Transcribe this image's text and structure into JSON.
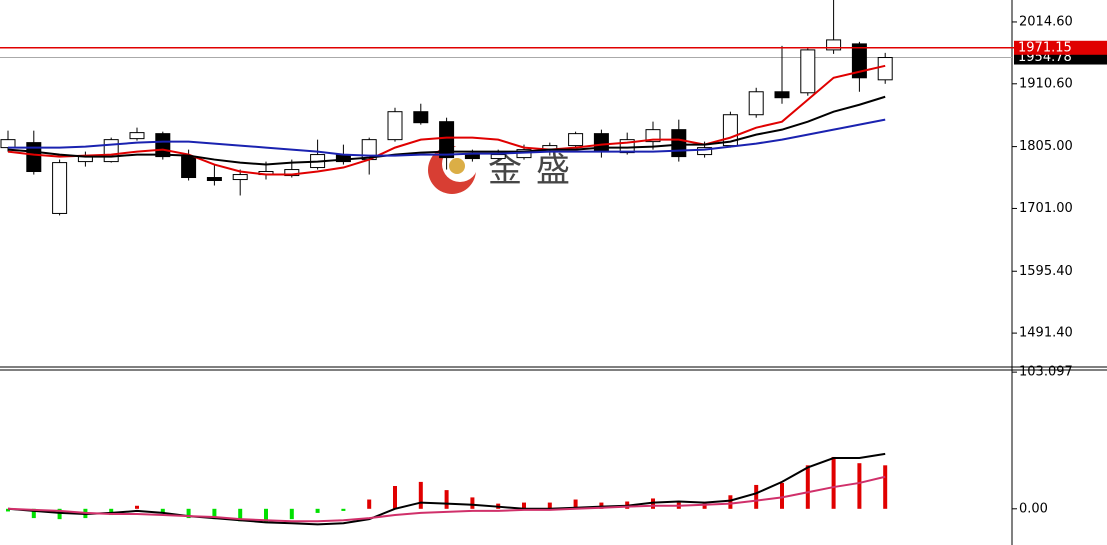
{
  "chart_data": [
    {
      "type": "candlestick",
      "watermark": "金盛",
      "ylim": [
        1434.4,
        2051.5
      ],
      "yticks": [
        {
          "value": 2014.6,
          "label": "2014.60"
        },
        {
          "value": 1910.6,
          "label": "1910.60"
        },
        {
          "value": 1805,
          "label": "1805.00"
        },
        {
          "value": 1701,
          "label": "1701.00"
        },
        {
          "value": 1595.4,
          "label": "1595.40"
        },
        {
          "value": 1491.4,
          "label": "1491.40"
        }
      ],
      "price_line": 1971.15,
      "price_line_color": "#e00000",
      "last_price": 1954.78,
      "open": [
        1803.3,
        1811.7,
        1692.6,
        1779.8,
        1779.8,
        1818.4,
        1826.8,
        1788.2,
        1753.0,
        1749.6,
        1758.0,
        1756.3,
        1769.8,
        1791.6,
        1783.2,
        1816.7,
        1863.7,
        1846.9,
        1791.6,
        1784.9,
        1786.5,
        1799.9,
        1806.7,
        1826.8,
        1794.9,
        1813.4,
        1833.5,
        1791.6,
        1806.7,
        1858.6,
        1897.2,
        1895.5,
        1967.6,
        1977.7,
        1917.3
      ],
      "high": [
        1831.8,
        1831.8,
        1783.2,
        1796.6,
        1820.1,
        1836.8,
        1830.1,
        1799.9,
        1774.8,
        1766.4,
        1779.8,
        1783.2,
        1816.7,
        1808.3,
        1820.1,
        1870.4,
        1877.1,
        1853.6,
        1799.9,
        1799.9,
        1808.3,
        1811.7,
        1830.1,
        1833.5,
        1828.5,
        1846.9,
        1850.3,
        1813.4,
        1863.7,
        1903.9,
        1974.4,
        1971.0,
        2051.5,
        1981.1,
        1962.6
      ],
      "low": [
        1796.6,
        1758.0,
        1689.3,
        1771.4,
        1778.1,
        1815.0,
        1783.2,
        1748.0,
        1739.6,
        1722.8,
        1749.6,
        1753.0,
        1766.4,
        1774.8,
        1758.0,
        1813.4,
        1841.9,
        1766.4,
        1779.8,
        1783.2,
        1783.2,
        1789.9,
        1803.3,
        1786.5,
        1791.6,
        1799.9,
        1779.8,
        1786.5,
        1803.3,
        1853.6,
        1877.1,
        1890.5,
        1960.9,
        1897.2,
        1910.6
      ],
      "close": [
        1816.7,
        1763.1,
        1778.1,
        1788.2,
        1816.7,
        1828.5,
        1788.2,
        1753.0,
        1748.0,
        1758.0,
        1763.1,
        1766.4,
        1791.6,
        1779.8,
        1816.7,
        1863.7,
        1845.2,
        1786.5,
        1784.9,
        1791.6,
        1799.9,
        1806.7,
        1826.8,
        1796.6,
        1816.7,
        1833.5,
        1788.2,
        1803.3,
        1858.6,
        1897.2,
        1887.2,
        1967.6,
        1984.4,
        1920.7,
        1954.78
      ],
      "up_color": "#ffffff",
      "down_color": "#000000",
      "overlays": [
        {
          "color": "#e00000",
          "values": [
            1796.6,
            1791.6,
            1788.2,
            1789.9,
            1791.6,
            1796.6,
            1799.9,
            1791.6,
            1774.8,
            1763.1,
            1758.0,
            1758.0,
            1763.1,
            1769.8,
            1783.2,
            1803.3,
            1816.7,
            1820.1,
            1820.1,
            1816.7,
            1803.3,
            1799.9,
            1803.3,
            1808.3,
            1811.7,
            1816.7,
            1816.7,
            1808.3,
            1820.1,
            1836.8,
            1846.9,
            1883.8,
            1920.7,
            1930.8,
            1940.8
          ]
        },
        {
          "color": "#000000",
          "values": [
            1799.9,
            1796.6,
            1791.6,
            1788.2,
            1788.2,
            1791.6,
            1791.6,
            1789.9,
            1783.2,
            1778.1,
            1774.8,
            1778.1,
            1779.8,
            1783.2,
            1786.5,
            1791.6,
            1794.9,
            1796.6,
            1796.6,
            1796.6,
            1796.6,
            1799.9,
            1799.9,
            1803.3,
            1803.3,
            1805.0,
            1808.3,
            1808.3,
            1813.4,
            1825.1,
            1833.5,
            1846.9,
            1863.7,
            1875.4,
            1888.8
          ]
        },
        {
          "color": "#1a22b0",
          "values": [
            1803.3,
            1803.3,
            1803.3,
            1805.0,
            1808.3,
            1811.7,
            1813.4,
            1813.4,
            1810.0,
            1806.7,
            1803.3,
            1799.9,
            1796.6,
            1791.6,
            1789.9,
            1789.9,
            1791.6,
            1791.6,
            1793.2,
            1793.2,
            1794.9,
            1796.6,
            1796.6,
            1796.6,
            1796.6,
            1796.6,
            1798.3,
            1799.9,
            1805.0,
            1810.0,
            1816.7,
            1825.1,
            1833.5,
            1841.9,
            1850.3
          ]
        }
      ]
    },
    {
      "type": "macd",
      "ylim": [
        -27.3,
        104.7
      ],
      "yticks": [
        103.097,
        {
          "value": 0,
          "label": "0.00"
        }
      ],
      "up_color": "#e00000",
      "down_color": "#00e000",
      "values": [
        -2,
        -7.0,
        -7.8,
        -7.0,
        -4.7,
        2.3,
        -3.1,
        -7.0,
        -7.8,
        -9.4,
        -10.2,
        -7.8,
        -3.1,
        -1.6,
        7.0,
        17.2,
        20.3,
        14.1,
        8.6,
        3.9,
        4.7,
        4.7,
        7.0,
        4.7,
        5.5,
        7.8,
        4.7,
        3.9,
        10.2,
        18.0,
        19.5,
        32.8,
        39.1,
        34.4,
        32.8
      ],
      "lines": [
        {
          "color": "#000000",
          "values": [
            0,
            -1.6,
            -3.1,
            -3.9,
            -3.1,
            -1.6,
            -3.1,
            -5.5,
            -7.0,
            -8.6,
            -10.2,
            -10.9,
            -11.7,
            -10.9,
            -7.8,
            0,
            4.7,
            3.9,
            3.1,
            1.6,
            0,
            0,
            0.8,
            1.6,
            2.3,
            4.7,
            5.5,
            4.7,
            6.2,
            11.7,
            20.3,
            31.2,
            38.3,
            38.3,
            41.4
          ]
        },
        {
          "color": "#d0306a",
          "values": [
            0,
            -0.8,
            -1.6,
            -3.1,
            -3.9,
            -3.9,
            -4.7,
            -5.5,
            -6.2,
            -7.8,
            -8.6,
            -9.4,
            -9.4,
            -8.6,
            -7.0,
            -4.7,
            -3.1,
            -2.3,
            -1.6,
            -1.6,
            -0.8,
            -0.8,
            0,
            0.8,
            1.6,
            2.3,
            2.3,
            3.1,
            3.9,
            6.2,
            8.6,
            12.5,
            16.4,
            19.5,
            24.2
          ]
        }
      ]
    }
  ]
}
